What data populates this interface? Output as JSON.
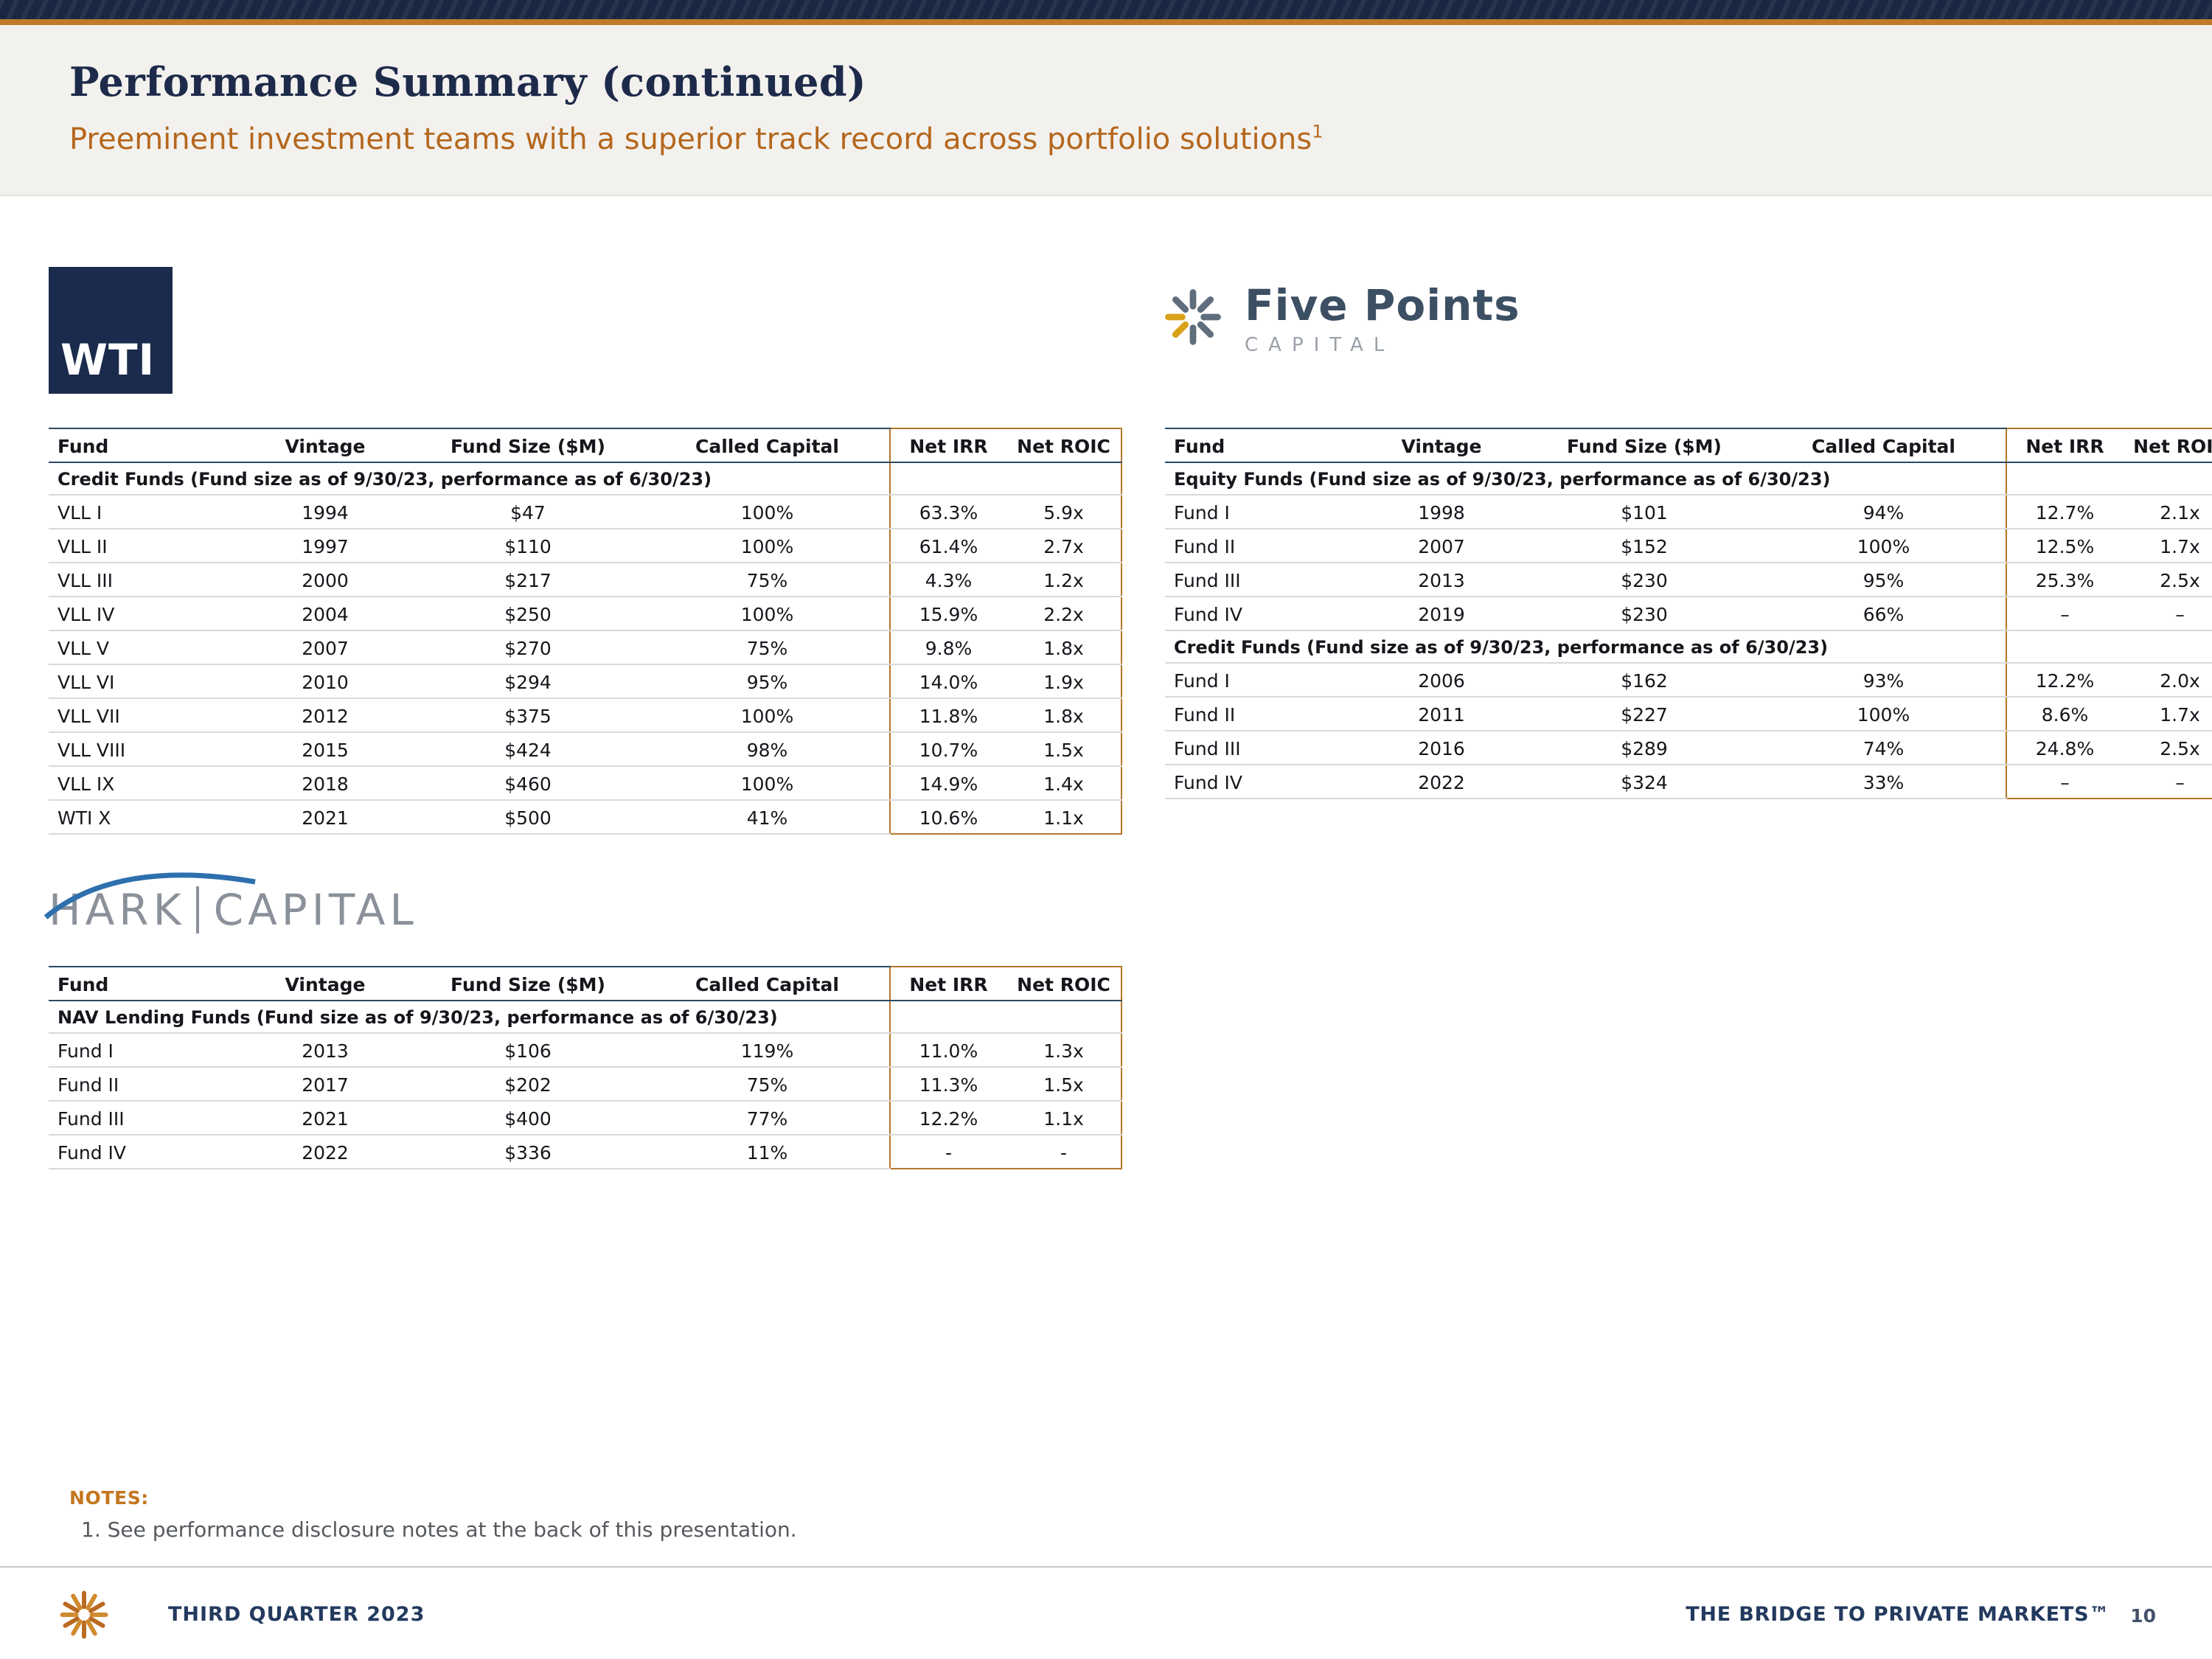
{
  "header": {
    "title": "Performance Summary (continued)",
    "subtitle": "Preeminent investment teams with a superior track record across portfolio solutions",
    "subtitle_sup": "1"
  },
  "columns": [
    "Fund",
    "Vintage",
    "Fund Size ($M)",
    "Called Capital",
    "Net IRR",
    "Net ROIC"
  ],
  "tables": {
    "wti": {
      "logo_text": "WTI",
      "sections": [
        {
          "label": "Credit Funds (Fund size as of 9/30/23, performance as of 6/30/23)",
          "rows": [
            [
              "VLL I",
              "1994",
              "$47",
              "100%",
              "63.3%",
              "5.9x"
            ],
            [
              "VLL II",
              "1997",
              "$110",
              "100%",
              "61.4%",
              "2.7x"
            ],
            [
              "VLL III",
              "2000",
              "$217",
              "75%",
              "4.3%",
              "1.2x"
            ],
            [
              "VLL IV",
              "2004",
              "$250",
              "100%",
              "15.9%",
              "2.2x"
            ],
            [
              "VLL V",
              "2007",
              "$270",
              "75%",
              "9.8%",
              "1.8x"
            ],
            [
              "VLL VI",
              "2010",
              "$294",
              "95%",
              "14.0%",
              "1.9x"
            ],
            [
              "VLL VII",
              "2012",
              "$375",
              "100%",
              "11.8%",
              "1.8x"
            ],
            [
              "VLL VIII",
              "2015",
              "$424",
              "98%",
              "10.7%",
              "1.5x"
            ],
            [
              "VLL IX",
              "2018",
              "$460",
              "100%",
              "14.9%",
              "1.4x"
            ],
            [
              "WTI X",
              "2021",
              "$500",
              "41%",
              "10.6%",
              "1.1x"
            ]
          ]
        }
      ]
    },
    "five_points": {
      "logo_name": "Five Points",
      "logo_sub": "CAPITAL",
      "sections": [
        {
          "label": "Equity Funds (Fund size as of 9/30/23, performance as of 6/30/23)",
          "rows": [
            [
              "Fund I",
              "1998",
              "$101",
              "94%",
              "12.7%",
              "2.1x"
            ],
            [
              "Fund II",
              "2007",
              "$152",
              "100%",
              "12.5%",
              "1.7x"
            ],
            [
              "Fund III",
              "2013",
              "$230",
              "95%",
              "25.3%",
              "2.5x"
            ],
            [
              "Fund IV",
              "2019",
              "$230",
              "66%",
              "–",
              "–"
            ]
          ]
        },
        {
          "label": "Credit Funds (Fund size as of 9/30/23, performance as of 6/30/23)",
          "rows": [
            [
              "Fund I",
              "2006",
              "$162",
              "93%",
              "12.2%",
              "2.0x"
            ],
            [
              "Fund II",
              "2011",
              "$227",
              "100%",
              "8.6%",
              "1.7x"
            ],
            [
              "Fund III",
              "2016",
              "$289",
              "74%",
              "24.8%",
              "2.5x"
            ],
            [
              "Fund IV",
              "2022",
              "$324",
              "33%",
              "–",
              "–"
            ]
          ]
        }
      ]
    },
    "hark": {
      "logo_part1": "HARK",
      "logo_part2": "CAPITAL",
      "sections": [
        {
          "label": "NAV Lending Funds (Fund size as of 9/30/23, performance as of 6/30/23)",
          "rows": [
            [
              "Fund I",
              "2013",
              "$106",
              "119%",
              "11.0%",
              "1.3x"
            ],
            [
              "Fund II",
              "2017",
              "$202",
              "75%",
              "11.3%",
              "1.5x"
            ],
            [
              "Fund III",
              "2021",
              "$400",
              "77%",
              "12.2%",
              "1.1x"
            ],
            [
              "Fund IV",
              "2022",
              "$336",
              "11%",
              "-",
              "-"
            ]
          ]
        }
      ]
    }
  },
  "notes": {
    "heading": "NOTES:",
    "line": "1. See performance disclosure notes at the back of this presentation."
  },
  "footer": {
    "quarter": "THIRD QUARTER 2023",
    "tagline": "THE BRIDGE TO PRIVATE MARKETS™",
    "page": "10"
  },
  "colors": {
    "navy": "#1a2742",
    "accent_orange": "#c07a2b",
    "box_orange": "#b5762a",
    "subtitle_orange": "#b5671d",
    "gold": "#d9a21b",
    "slate": "#5f6e7c"
  }
}
